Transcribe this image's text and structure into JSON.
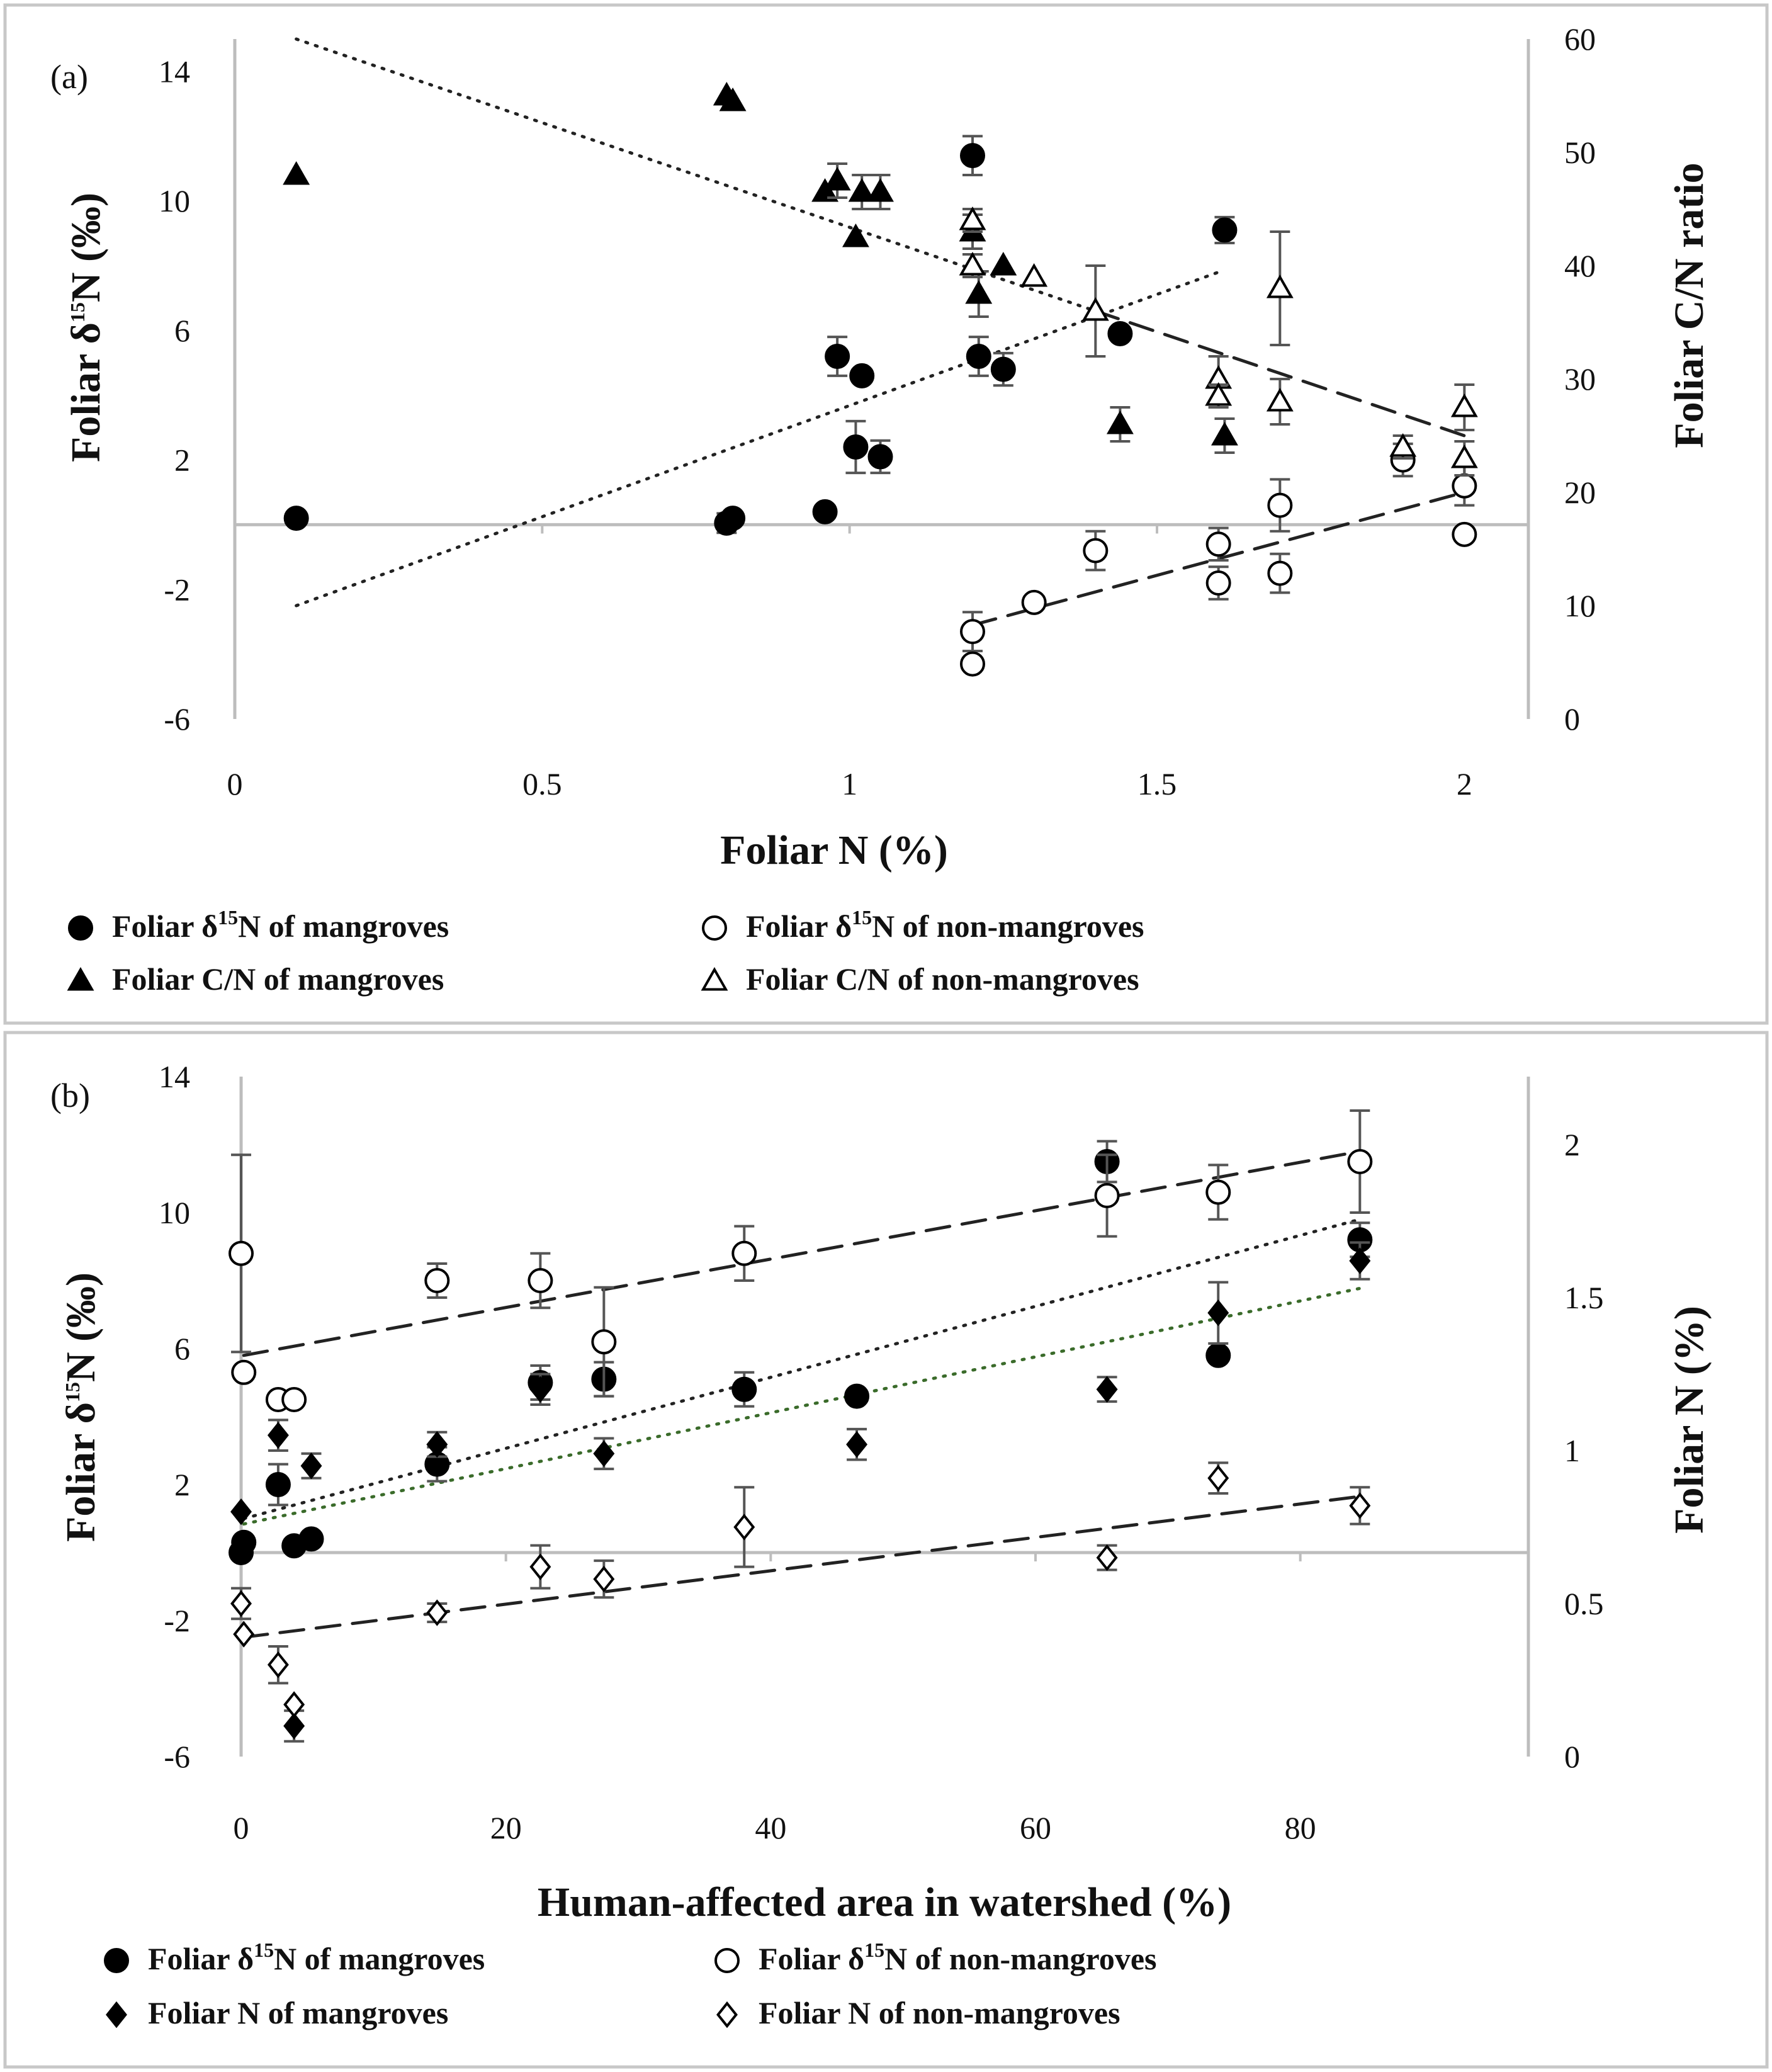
{
  "chart_data": [
    {
      "type": "scatter",
      "panel_label": "(a)",
      "xlabel": "Foliar N (%)",
      "ylabel_left": [
        "Foliar δ",
        "15",
        "N (‰)"
      ],
      "ylabel_right": "Foliar C/N ratio",
      "xlim": [
        0,
        2.1
      ],
      "ylim_left": [
        -6,
        15
      ],
      "ylim_right": [
        0,
        60
      ],
      "x_ticks": [
        "0",
        "0.5",
        "1",
        "1.5",
        "2"
      ],
      "y_ticks_left": [
        "-6",
        "-2",
        "2",
        "6",
        "10",
        "14"
      ],
      "y_ticks_right": [
        "0",
        "10",
        "20",
        "30",
        "40",
        "50",
        "60"
      ],
      "legend": [
        {
          "marker": "circle-filled",
          "parts": [
            "Foliar δ",
            "15",
            "N of mangroves"
          ]
        },
        {
          "marker": "circle-open",
          "parts": [
            "Foliar δ",
            "15",
            "N of non-mangroves"
          ]
        },
        {
          "marker": "triangle-filled",
          "parts": [
            "Foliar C/N of mangroves"
          ]
        },
        {
          "marker": "triangle-open",
          "parts": [
            "Foliar C/N of non-mangroves"
          ]
        }
      ],
      "series": [
        {
          "name": "Foliar δ15N of mangroves",
          "axis": "left",
          "marker": "circle-filled",
          "points": [
            [
              0.1,
              0.2,
              0
            ],
            [
              0.8,
              0.05,
              0.3
            ],
            [
              0.81,
              0.2,
              0
            ],
            [
              0.96,
              0.4,
              0
            ],
            [
              0.98,
              5.2,
              0.6
            ],
            [
              1.02,
              4.6,
              0
            ],
            [
              1.01,
              2.4,
              0.8
            ],
            [
              1.05,
              2.1,
              0.5
            ],
            [
              1.2,
              11.4,
              0.6
            ],
            [
              1.21,
              5.2,
              0.6
            ],
            [
              1.25,
              4.8,
              0.5
            ],
            [
              1.44,
              5.9,
              0
            ],
            [
              1.61,
              9.1,
              0.4
            ]
          ]
        },
        {
          "name": "Foliar δ15N of non-mangroves",
          "axis": "left",
          "marker": "circle-open",
          "points": [
            [
              1.2,
              -3.3,
              0.6
            ],
            [
              1.2,
              -4.3,
              0
            ],
            [
              1.3,
              -2.4,
              0
            ],
            [
              1.4,
              -0.8,
              0.6
            ],
            [
              1.6,
              -0.6,
              0.5
            ],
            [
              1.6,
              -1.8,
              0.5
            ],
            [
              1.7,
              0.6,
              0.8
            ],
            [
              1.7,
              -1.5,
              0.6
            ],
            [
              1.9,
              2.0,
              0.5
            ],
            [
              2.0,
              1.2,
              0.6
            ],
            [
              2.0,
              -0.3,
              0
            ]
          ]
        },
        {
          "name": "Foliar C/N of mangroves",
          "axis": "right",
          "marker": "triangle-filled",
          "points": [
            [
              0.1,
              48,
              0
            ],
            [
              0.8,
              55,
              0
            ],
            [
              0.81,
              54.5,
              0
            ],
            [
              0.96,
              46.5,
              0
            ],
            [
              0.98,
              47.5,
              1.5
            ],
            [
              1.02,
              46.5,
              1.5
            ],
            [
              1.01,
              42.5,
              0
            ],
            [
              1.05,
              46.5,
              1.5
            ],
            [
              1.2,
              43,
              1.5
            ],
            [
              1.21,
              37.5,
              2
            ],
            [
              1.25,
              40,
              0
            ],
            [
              1.44,
              26,
              1.5
            ],
            [
              1.61,
              25,
              1.5
            ]
          ]
        },
        {
          "name": "Foliar C/N of non-mangroves",
          "axis": "right",
          "marker": "triangle-open",
          "points": [
            [
              1.2,
              44,
              1
            ],
            [
              1.2,
              40,
              1
            ],
            [
              1.3,
              39,
              0
            ],
            [
              1.4,
              36,
              4
            ],
            [
              1.6,
              30,
              2
            ],
            [
              1.6,
              28.5,
              1
            ],
            [
              1.7,
              38,
              5
            ],
            [
              1.7,
              28,
              2
            ],
            [
              1.9,
              24,
              1
            ],
            [
              2.0,
              27.5,
              2
            ],
            [
              2.0,
              23,
              1.5
            ]
          ]
        }
      ],
      "trendlines": [
        {
          "axis": "left",
          "style": "dotted",
          "x": [
            0.1,
            1.6
          ],
          "y": [
            -2.5,
            7.8
          ]
        },
        {
          "axis": "left",
          "style": "dashed",
          "x": [
            1.2,
            2.0
          ],
          "y": [
            -3.1,
            1.0
          ]
        },
        {
          "axis": "right",
          "style": "dotted",
          "x": [
            0.1,
            1.4
          ],
          "y": [
            60,
            36
          ]
        },
        {
          "axis": "right",
          "style": "dashed",
          "x": [
            1.4,
            2.0
          ],
          "y": [
            36,
            25
          ]
        }
      ]
    },
    {
      "type": "scatter",
      "panel_label": "(b)",
      "xlabel": "Human-affected area in watershed (%)",
      "ylabel_left": [
        "Foliar δ",
        "15",
        "N (‰)"
      ],
      "ylabel_right": "Foliar N (%)",
      "xlim": [
        -1,
        90
      ],
      "ylim_left": [
        -6,
        14
      ],
      "ylim_right": [
        0,
        2.222
      ],
      "x_ticks": [
        "0",
        "20",
        "40",
        "60",
        "80"
      ],
      "y_ticks_left": [
        "-6",
        "-2",
        "2",
        "6",
        "10",
        "14"
      ],
      "y_ticks_right": [
        "0",
        "0.5",
        "1",
        "1.5",
        "2"
      ],
      "legend": [
        {
          "marker": "circle-filled",
          "parts": [
            "Foliar δ",
            "15",
            "N of mangroves"
          ]
        },
        {
          "marker": "circle-open",
          "parts": [
            "Foliar δ",
            "15",
            "N of non-mangroves"
          ]
        },
        {
          "marker": "diamond-filled",
          "parts": [
            "Foliar N of mangroves"
          ]
        },
        {
          "marker": "diamond-open",
          "parts": [
            "Foliar N of non-mangroves"
          ]
        }
      ],
      "series": [
        {
          "name": "Foliar δ15N of mangroves",
          "axis": "left",
          "marker": "circle-filled",
          "points": [
            [
              0,
              0,
              0
            ],
            [
              0.2,
              0.3,
              0
            ],
            [
              2.8,
              2,
              0.6
            ],
            [
              4,
              0.2,
              0
            ],
            [
              5.3,
              0.4,
              0
            ],
            [
              14.8,
              2.6,
              0.5
            ],
            [
              22.6,
              5,
              0.5
            ],
            [
              27.4,
              5.1,
              0.5
            ],
            [
              38,
              4.8,
              0.5
            ],
            [
              46.5,
              4.6,
              0
            ],
            [
              65.4,
              11.5,
              0.6
            ],
            [
              73.8,
              5.8,
              0
            ],
            [
              84.5,
              9.2,
              0.5
            ]
          ]
        },
        {
          "name": "Foliar δ15N of non-mangroves",
          "axis": "left",
          "marker": "circle-open",
          "points": [
            [
              0,
              8.8,
              2.9
            ],
            [
              0.2,
              5.3,
              0
            ],
            [
              2.8,
              4.5,
              0
            ],
            [
              4,
              4.5,
              0
            ],
            [
              14.8,
              8,
              0.5
            ],
            [
              22.6,
              8,
              0.8
            ],
            [
              27.4,
              6.2,
              1.6
            ],
            [
              38,
              8.8,
              0.8
            ],
            [
              65.4,
              10.5,
              1.2
            ],
            [
              73.8,
              10.6,
              0.8
            ],
            [
              84.5,
              11.5,
              1.5
            ]
          ]
        },
        {
          "name": "Foliar N of mangroves",
          "axis": "right",
          "marker": "diamond-filled",
          "points": [
            [
              0,
              0.8,
              0
            ],
            [
              2.8,
              1.05,
              0.05
            ],
            [
              5.3,
              0.95,
              0.04
            ],
            [
              14.8,
              1.02,
              0.04
            ],
            [
              22.6,
              1.2,
              0.05
            ],
            [
              27.4,
              0.99,
              0.05
            ],
            [
              46.5,
              1.02,
              0.05
            ],
            [
              65.4,
              1.2,
              0.04
            ],
            [
              73.8,
              1.45,
              0.1
            ],
            [
              84.5,
              1.62,
              0.06
            ],
            [
              4,
              0.1,
              0.05
            ]
          ]
        },
        {
          "name": "Foliar N of non-mangroves",
          "axis": "right",
          "marker": "diamond-open",
          "points": [
            [
              0,
              0.5,
              0.05
            ],
            [
              0.2,
              0.4,
              0
            ],
            [
              2.8,
              0.3,
              0.06
            ],
            [
              4,
              0.17,
              0
            ],
            [
              14.8,
              0.47,
              0.03
            ],
            [
              22.6,
              0.62,
              0.07
            ],
            [
              27.4,
              0.58,
              0.06
            ],
            [
              38,
              0.75,
              0.13
            ],
            [
              65.4,
              0.65,
              0.04
            ],
            [
              73.8,
              0.91,
              0.05
            ],
            [
              84.5,
              0.82,
              0.06
            ]
          ]
        }
      ],
      "trendlines": [
        {
          "axis": "left",
          "style": "dashed",
          "color": "#222222",
          "x": [
            0.2,
            84.5
          ],
          "y": [
            5.8,
            11.8
          ]
        },
        {
          "axis": "left",
          "style": "dotted",
          "color": "#222222",
          "x": [
            0.2,
            84.5
          ],
          "y": [
            1.0,
            9.8
          ]
        },
        {
          "axis": "right",
          "style": "dotted",
          "color": "#3a6b2a",
          "x": [
            0.2,
            84.5
          ],
          "y": [
            0.76,
            1.53
          ]
        },
        {
          "axis": "right",
          "style": "dashed",
          "color": "#222222",
          "x": [
            0.2,
            84.5
          ],
          "y": [
            0.39,
            0.85
          ]
        }
      ]
    }
  ]
}
